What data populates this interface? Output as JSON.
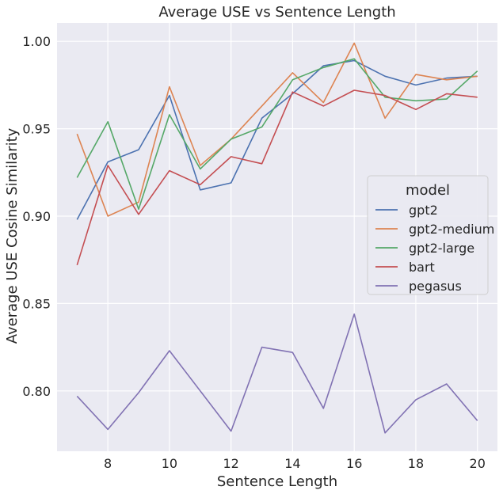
{
  "chart_data": {
    "type": "line",
    "title": "Average USE vs Sentence Length",
    "xlabel": "Sentence Length",
    "ylabel": "Average USE Cosine Similarity",
    "xlim": [
      6.35,
      20.65
    ],
    "ylim": [
      0.7655,
      1.0105
    ],
    "xticks": [
      "8",
      "10",
      "12",
      "14",
      "16",
      "18",
      "20"
    ],
    "yticks": [
      "0.80",
      "0.85",
      "0.90",
      "0.95",
      "1.00"
    ],
    "grid": true,
    "legend": {
      "title": "model",
      "position": "center-right"
    },
    "x": [
      7,
      8,
      9,
      10,
      11,
      12,
      13,
      14,
      15,
      16,
      17,
      18,
      19,
      20
    ],
    "series": [
      {
        "name": "gpt2",
        "color": "#4c72b0",
        "values": [
          0.898,
          0.931,
          0.938,
          0.969,
          0.915,
          0.919,
          0.956,
          0.97,
          0.986,
          0.989,
          0.98,
          0.975,
          0.979,
          0.98
        ]
      },
      {
        "name": "gpt2-medium",
        "color": "#dd8452",
        "values": [
          0.947,
          0.9,
          0.908,
          0.974,
          0.929,
          0.944,
          0.963,
          0.982,
          0.965,
          0.999,
          0.956,
          0.981,
          0.978,
          0.98
        ]
      },
      {
        "name": "gpt2-large",
        "color": "#55a868",
        "values": [
          0.922,
          0.954,
          0.904,
          0.958,
          0.927,
          0.944,
          0.951,
          0.978,
          0.985,
          0.99,
          0.968,
          0.966,
          0.967,
          0.983
        ]
      },
      {
        "name": "bart",
        "color": "#c44e52",
        "values": [
          0.872,
          0.929,
          0.901,
          0.926,
          0.918,
          0.934,
          0.93,
          0.971,
          0.963,
          0.972,
          0.969,
          0.961,
          0.97,
          0.968
        ]
      },
      {
        "name": "pegasus",
        "color": "#8172b3",
        "values": [
          0.797,
          0.778,
          0.799,
          0.823,
          0.8,
          0.777,
          0.825,
          0.822,
          0.79,
          0.844,
          0.776,
          0.795,
          0.804,
          0.783
        ]
      }
    ]
  }
}
